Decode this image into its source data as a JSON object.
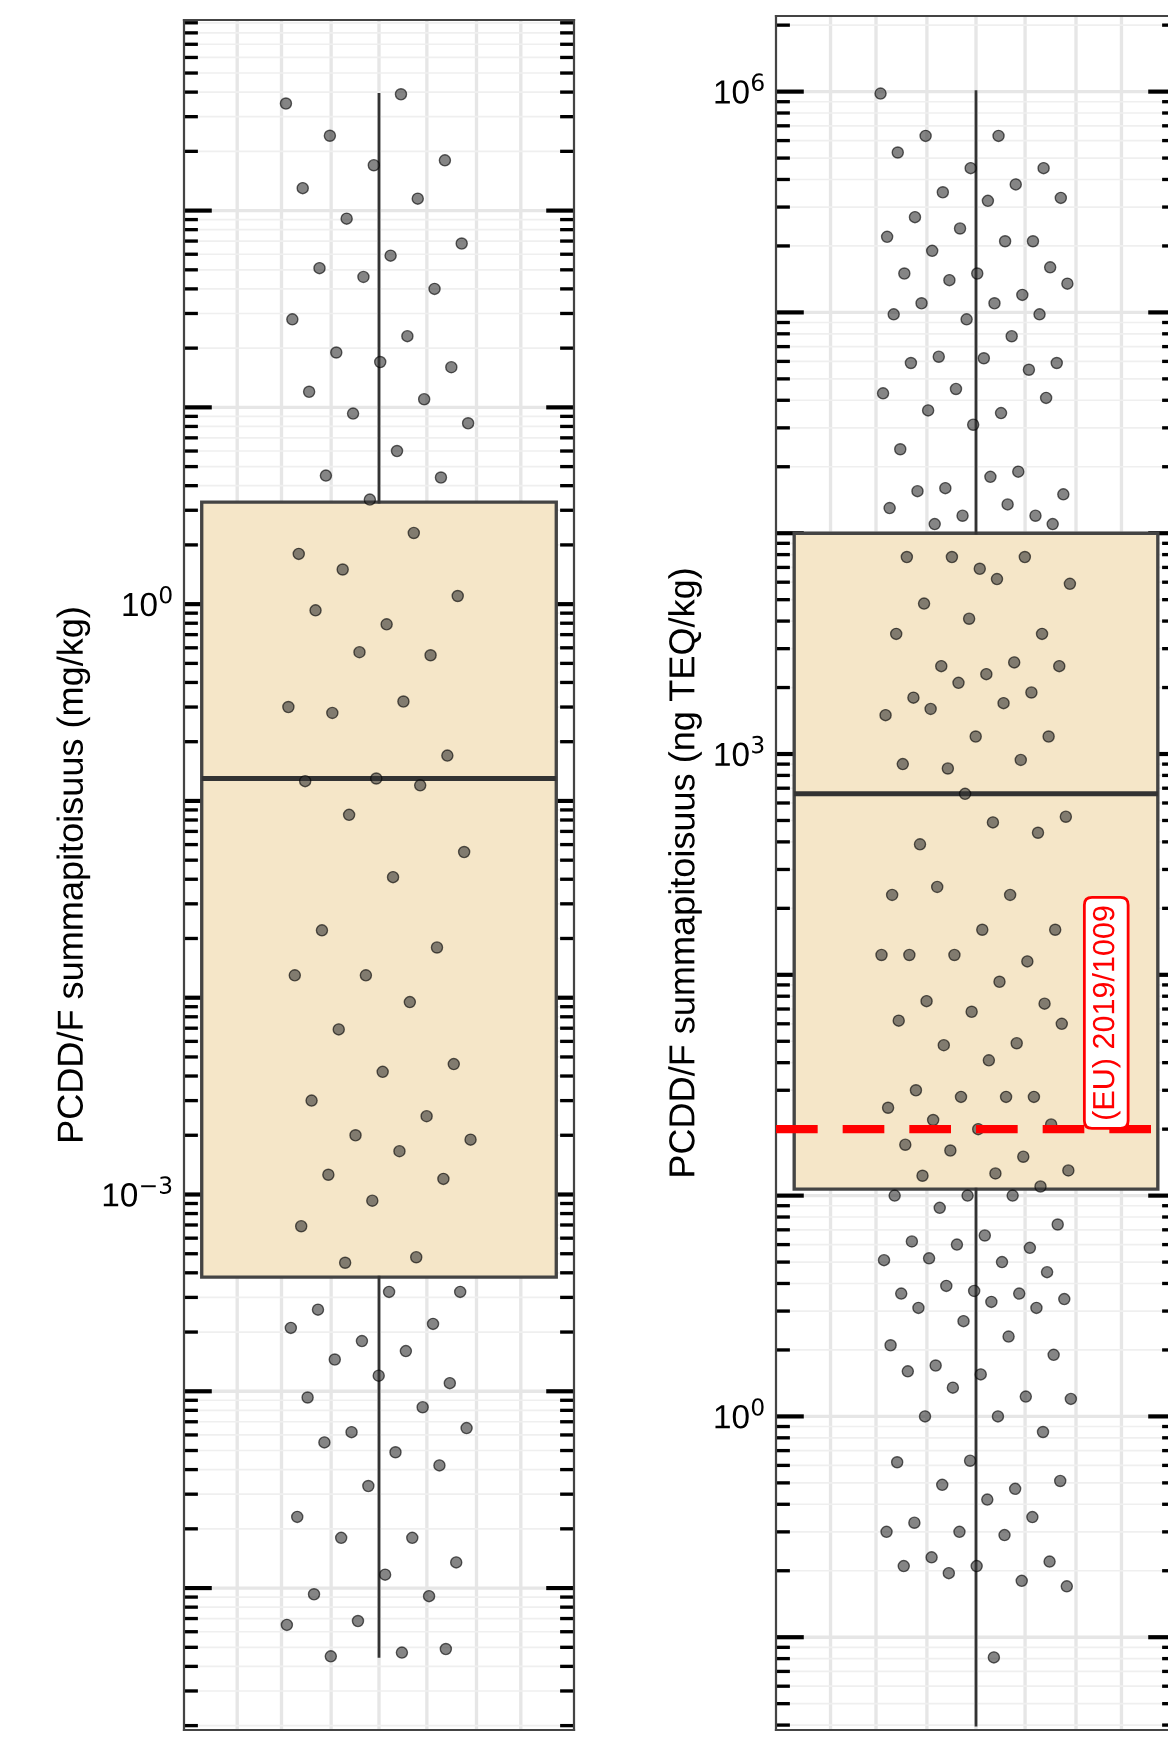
{
  "chart_data": [
    {
      "type": "box",
      "ylabel": "PCDD/F summapitoisuus (mg/kg)",
      "categories": [
        null
      ],
      "log": "y",
      "grid": true,
      "tick_labels": "y",
      "ylim": [
        1.9e-06,
        930
      ],
      "yticks": [
        {
          "value": 1e-05,
          "label": null
        },
        {
          "value": 0.0001,
          "label": null
        },
        {
          "value": 0.001,
          "label": "10$^{−3}$"
        },
        {
          "value": 0.01,
          "label": null
        },
        {
          "value": 0.1,
          "label": null
        },
        {
          "value": 1,
          "label": "10$^{0}$"
        },
        {
          "value": 10,
          "label": null
        },
        {
          "value": 100,
          "label": null
        }
      ],
      "boxes": [
        {
          "low": 4.5e-06,
          "q1": 0.00038,
          "median": 0.13,
          "q3": 3.3,
          "high": 390
        }
      ],
      "colors": [
        "#f5e6c8"
      ],
      "series": [
        {
          "type": "scatter",
          "color": "#333333",
          "marker": "circle",
          "x": [
            null,
            null,
            null,
            null,
            null,
            null,
            null,
            null,
            null,
            null,
            null,
            null,
            null,
            null,
            null,
            null,
            null,
            null,
            null,
            null,
            null,
            null,
            null,
            null,
            null,
            null,
            null,
            null,
            null,
            null,
            null,
            null,
            null,
            null,
            null,
            null,
            null,
            null,
            null,
            null,
            null,
            null,
            null,
            null,
            null,
            null,
            null,
            null,
            null,
            null,
            null,
            null,
            null,
            null,
            null,
            null,
            null,
            null,
            null,
            null,
            null,
            null,
            null,
            null,
            null,
            null,
            null,
            null,
            null,
            null,
            null,
            null,
            null,
            null,
            null,
            null,
            null,
            null,
            null,
            null,
            null,
            null,
            null,
            null,
            null,
            null,
            null,
            null,
            null,
            null,
            null,
            null,
            null
          ],
          "values": [
            350,
            390,
            240,
            180,
            170,
            130,
            115,
            91,
            68,
            59,
            51,
            40,
            46,
            28,
            23,
            19,
            16,
            17,
            12,
            11,
            9.3,
            8.3,
            6.0,
            4.5,
            4.4,
            3.4,
            1.8,
            2.3,
            1.5,
            1.1,
            0.79,
            0.93,
            0.55,
            0.57,
            0.3,
            0.32,
            0.28,
            0.17,
            0.13,
            0.126,
            0.12,
            0.085,
            0.055,
            0.041,
            0.022,
            0.018,
            0.013,
            0.013,
            0.0095,
            0.0069,
            0.0046,
            0.0042,
            0.003,
            0.0025,
            0.002,
            0.0019,
            0.00166,
            0.00126,
            0.0012,
            0.00093,
            0.00069,
            0.00048,
            0.00045,
            0.00032,
            0.00032,
            0.00026,
            0.00022,
            0.00018,
            0.00021,
            0.00016,
            0.000145,
            0.00011,
            0.00012,
            9.3e-05,
            8.3e-05,
            6.2e-05,
            6.5e-05,
            4.9e-05,
            5.5e-05,
            4.2e-05,
            3.3e-05,
            2.3e-05,
            1.8e-05,
            1.8e-05,
            1.35e-05,
            1.17e-05,
            9.3e-06,
            9.1e-06,
            6.8e-06,
            6.5e-06,
            4.7e-06,
            4.5e-06,
            4.9e-06
          ]
        }
      ]
    },
    {
      "type": "box",
      "ylabel": "PCDD/F summapitoisuus (ng TEQ/kg)",
      "categories": [
        null
      ],
      "log": "y",
      "grid": true,
      "tick_labels": "y",
      "ylim": [
        0.038,
        2200000.0
      ],
      "yticks": [
        {
          "value": 0.1,
          "label": null
        },
        {
          "value": 1,
          "label": "10$^{0}$"
        },
        {
          "value": 10,
          "label": null
        },
        {
          "value": 100,
          "label": null
        },
        {
          "value": 1000,
          "label": "10$^{3}$"
        },
        {
          "value": 10000.0,
          "label": null
        },
        {
          "value": 100000.0,
          "label": null
        },
        {
          "value": 1000000.0,
          "label": "10$^{6}$"
        }
      ],
      "boxes": [
        {
          "low": 0.04,
          "q1": 10.7,
          "median": 660,
          "q3": 10000.0,
          "high": 1000000.0
        }
      ],
      "colors": [
        "#f5e6c8"
      ],
      "ref_lines": [
        {
          "axis": "y",
          "value": 20,
          "label": "(EU) 2019/1009",
          "color": "#ff0000",
          "line_style": "dashed"
        }
      ],
      "series": [
        {
          "type": "scatter",
          "color": "#333333",
          "marker": "circle",
          "x": [
            null,
            null,
            null,
            null,
            null,
            null,
            null,
            null,
            null,
            null,
            null,
            null,
            null,
            null,
            null,
            null,
            null,
            null,
            null,
            null,
            null,
            null,
            null,
            null,
            null,
            null,
            null,
            null,
            null,
            null,
            null,
            null,
            null,
            null,
            null,
            null,
            null,
            null,
            null,
            null,
            null,
            null,
            null,
            null,
            null,
            null,
            null,
            null,
            null,
            null,
            null,
            null,
            null,
            null,
            null,
            null,
            null,
            null,
            null,
            null,
            null,
            null,
            null,
            null,
            null,
            null,
            null,
            null,
            null,
            null,
            null,
            null,
            null,
            null,
            null,
            null,
            null,
            null,
            null,
            null,
            null,
            null,
            null,
            null,
            null,
            null,
            null,
            null,
            null,
            null,
            null,
            null,
            null,
            null,
            null,
            null,
            null,
            null,
            null,
            null,
            null,
            null,
            null,
            null,
            null,
            null,
            null,
            null,
            null,
            null,
            null,
            null,
            null,
            null,
            null,
            null,
            null,
            null,
            null,
            null,
            null,
            null,
            null,
            null,
            null,
            null,
            null,
            null,
            null,
            null,
            null,
            null,
            null,
            null,
            null,
            null,
            null,
            null,
            null,
            null,
            null,
            null,
            null,
            null,
            null,
            null,
            null,
            null,
            null,
            null,
            null,
            null,
            null,
            null,
            null,
            null,
            null,
            null,
            null,
            null,
            null,
            null,
            null,
            null,
            null,
            null,
            null
          ],
          "values": [
            980000.0,
            630000.0,
            630000.0,
            450000.0,
            450000.0,
            530000.0,
            380000.0,
            350000.0,
            330000.0,
            320000.0,
            270000.0,
            210000.0,
            240000.0,
            220000.0,
            210000.0,
            190000.0,
            160000.0,
            150000.0,
            150000.0,
            120000.0,
            140000.0,
            135000.0,
            110000.0,
            110000.0,
            98000.0,
            93000.0,
            98000.0,
            78000.0,
            63000.0,
            59000.0,
            62000.0,
            59000.0,
            55000.0,
            45000.0,
            43000.0,
            35000.0,
            36000.0,
            41000.0,
            31000.0,
            24000.0,
            19000.0,
            16000.0,
            15000.0,
            18000.0,
            15500.0,
            12000.0,
            12000.0,
            13000.0,
            13500.0,
            11000.0,
            11000.0,
            6900,
            7800,
            7800,
            7800,
            5900,
            6200,
            4800,
            3500,
            4100,
            3500,
            2600,
            2500,
            2500,
            2300,
            1800,
            1900,
            2100,
            1500,
            1700,
            1600,
            1200,
            1200,
            900,
            940,
            860,
            520,
            490,
            390,
            440,
            660,
            230,
            230,
            250,
            160,
            160,
            123,
            115,
            123,
            123,
            93,
            76,
            74,
            68,
            62,
            49,
            48,
            60,
            41,
            30,
            28,
            28,
            25,
            28,
            22,
            21,
            20,
            17,
            15,
            16,
            13,
            12.6,
            12.3,
            11,
            10,
            10,
            10,
            8.8,
            7.4,
            6.6,
            6.2,
            5.8,
            6.0,
            5.1,
            5.0,
            5.2,
            4.5,
            3.7,
            3.6,
            3.6,
            3.9,
            3.4,
            3.3,
            3.1,
            3.1,
            2.7,
            2.1,
            2.3,
            1.7,
            1.9,
            1.55,
            1.6,
            1.23,
            1.35,
            1.2,
            1.0,
            1.0,
            0.85,
            0.63,
            0.62,
            0.47,
            0.49,
            0.51,
            0.42,
            0.33,
            0.35,
            0.3,
            0.3,
            0.29,
            0.23,
            0.22,
            0.21,
            0.21,
            0.18,
            0.195,
            0.17,
            0.081
          ]
        }
      ]
    }
  ]
}
